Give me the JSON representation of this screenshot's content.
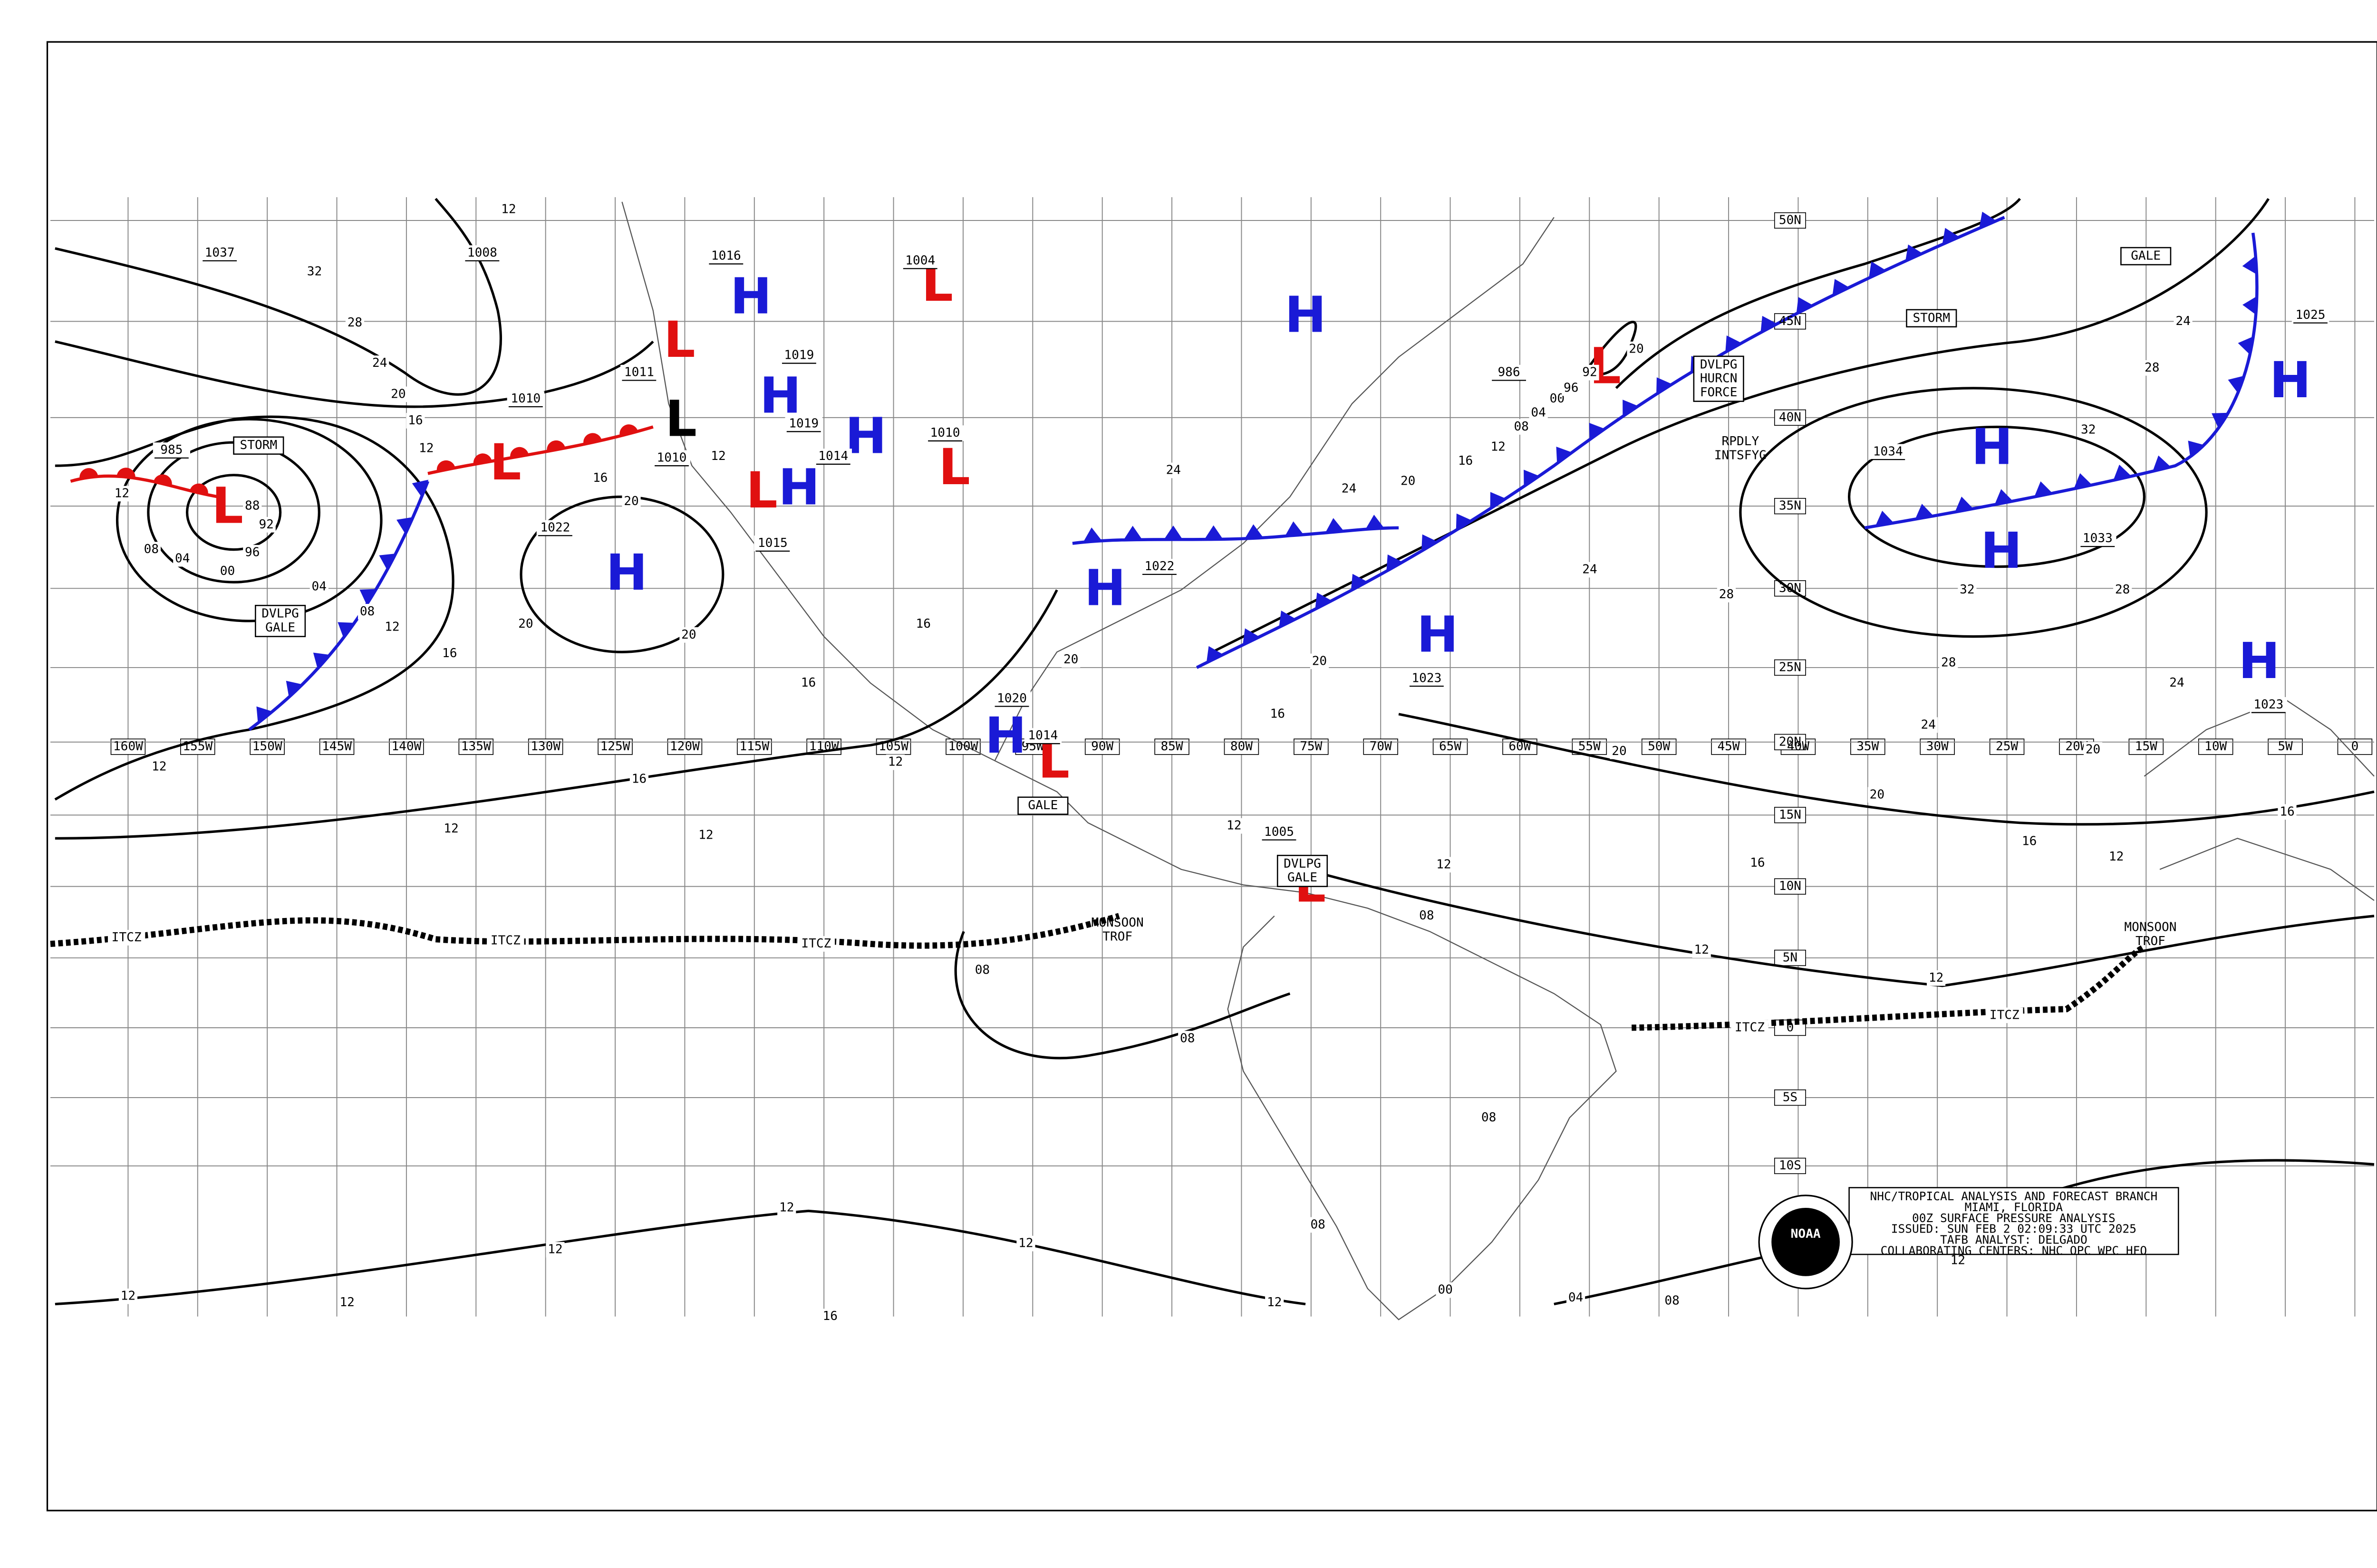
{
  "title_block": [
    "NHC/TROPICAL ANALYSIS AND FORECAST BRANCH",
    "MIAMI, FLORIDA",
    "00Z SURFACE PRESSURE ANALYSIS",
    "ISSUED: SUN FEB 2 02:09:33 UTC 2025",
    "TAFB ANALYST: DELGADO",
    "COLLABORATING CENTERS: NHC OPC WPC HFO"
  ],
  "logo": "NOAA",
  "longitudes": [
    "160W",
    "155W",
    "150W",
    "145W",
    "140W",
    "135W",
    "130W",
    "125W",
    "120W",
    "115W",
    "110W",
    "105W",
    "100W",
    "95W",
    "90W",
    "85W",
    "80W",
    "75W",
    "70W",
    "65W",
    "60W",
    "55W",
    "50W",
    "45W",
    "40W",
    "35W",
    "30W",
    "25W",
    "20W",
    "15W",
    "10W",
    "5W",
    "0"
  ],
  "latitudes": [
    "50N",
    "45N",
    "40N",
    "35N",
    "30N",
    "25N",
    "20N",
    "15N",
    "10N",
    "5N",
    "0",
    "5S",
    "10S"
  ],
  "highs": [
    "H",
    "H",
    "H",
    "H",
    "H",
    "H",
    "H",
    "H",
    "H",
    "H",
    "H",
    "H",
    "H"
  ],
  "lows": [
    "L",
    "L",
    "L",
    "L",
    "L",
    "L",
    "L",
    "L",
    "L",
    "L"
  ],
  "pressures": [
    "1037",
    "1008",
    "985",
    "1016",
    "1019",
    "1019",
    "1010",
    "1004",
    "1014",
    "1010",
    "1022",
    "1022",
    "1015",
    "1020",
    "1014",
    "1005",
    "1023",
    "1034",
    "1033",
    "1025",
    "1023",
    "986",
    "1010",
    "1011"
  ],
  "isobar_labels": [
    "12",
    "32",
    "28",
    "24",
    "20",
    "16",
    "12",
    "12",
    "08",
    "04",
    "00",
    "96",
    "92",
    "88",
    "04",
    "08",
    "12",
    "16",
    "20",
    "20",
    "16",
    "12",
    "12",
    "12",
    "16",
    "20",
    "12",
    "16",
    "12",
    "16",
    "20",
    "24",
    "16",
    "20",
    "24",
    "20",
    "16",
    "12",
    "08",
    "04",
    "00",
    "96",
    "92",
    "20",
    "24",
    "28",
    "32",
    "28",
    "32",
    "28",
    "24",
    "28",
    "24",
    "24",
    "20",
    "20",
    "16",
    "16",
    "16",
    "12",
    "12",
    "12",
    "12",
    "08",
    "08",
    "08",
    "08",
    "08",
    "12",
    "12",
    "12",
    "12",
    "12",
    "12",
    "12",
    "16",
    "04",
    "08",
    "00",
    "20",
    "12"
  ],
  "tags": [
    [
      "STORM"
    ],
    [
      "DVLPG",
      "GALE"
    ],
    [
      "GALE"
    ],
    [
      "STORM"
    ],
    [
      "DVLPG",
      "HURCN",
      "FORCE"
    ],
    [
      "DVLPG",
      "GALE"
    ],
    [
      "GALE"
    ],
    [
      "RPDLY",
      "INTSFYG"
    ],
    [
      "MONSOON",
      "TROF"
    ],
    [
      "MONSOON",
      "TROF"
    ]
  ],
  "itcz": [
    "ITCZ",
    "ITCZ",
    "ITCZ",
    "ITCZ",
    "ITCZ"
  ]
}
